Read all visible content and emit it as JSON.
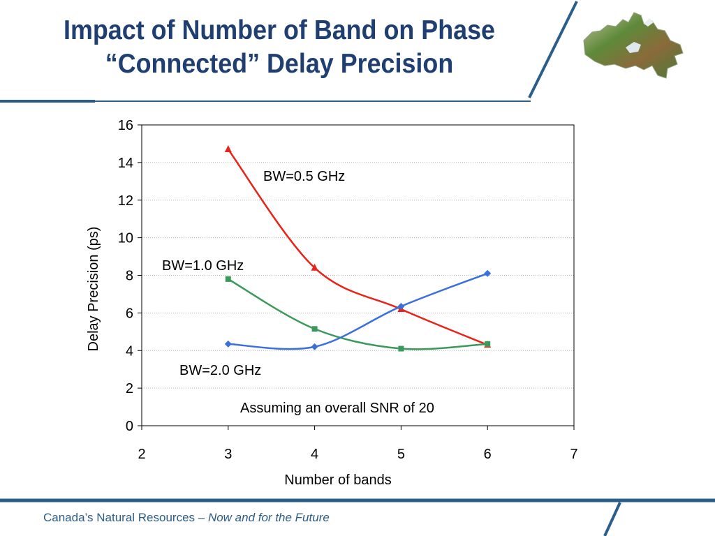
{
  "slide": {
    "title_line1": "Impact of Number of Band on Phase",
    "title_line2": "“Connected” Delay Precision",
    "footer_prefix": "Canada’s Natural Resources – ",
    "footer_tagline": "Now and for the Future",
    "accent_color": "#2b5d8a",
    "title_color": "#1f3f73"
  },
  "chart_data": {
    "type": "line",
    "title": "",
    "xlabel": "Number of bands",
    "ylabel": "Delay Precision (ps)",
    "xlim": [
      2,
      7
    ],
    "ylim": [
      0,
      16
    ],
    "xticks": [
      2,
      3,
      4,
      5,
      6,
      7
    ],
    "yticks": [
      0,
      2,
      4,
      6,
      8,
      10,
      12,
      14,
      16
    ],
    "grid": "horizontal dotted",
    "x": [
      3,
      4,
      5,
      6
    ],
    "series": [
      {
        "name": "BW=0.5 GHz",
        "values": [
          14.7,
          8.4,
          6.2,
          4.3
        ],
        "color": "#e8231a",
        "marker": "triangle"
      },
      {
        "name": "BW=1.0 GHz",
        "values": [
          7.8,
          5.15,
          4.1,
          4.35
        ],
        "color": "#3a9a5b",
        "marker": "square"
      },
      {
        "name": "BW=2.0 GHz",
        "values": [
          4.35,
          4.2,
          6.35,
          8.1
        ],
        "color": "#3a6fdc",
        "marker": "diamond"
      }
    ],
    "annotation": "Assuming an overall SNR of 20"
  }
}
